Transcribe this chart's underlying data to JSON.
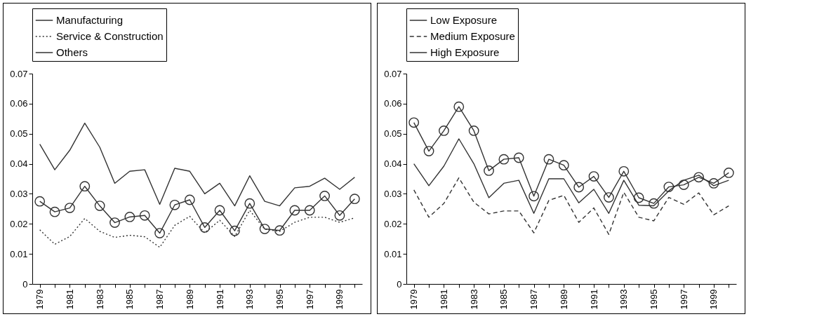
{
  "chart_data": [
    {
      "type": "line",
      "categories": [
        "1979",
        null,
        "1981",
        null,
        "1983",
        null,
        "1985",
        null,
        "1987",
        null,
        "1989",
        null,
        "1991",
        null,
        "1993",
        null,
        "1995",
        null,
        "1997",
        null,
        "1999",
        null
      ],
      "ylim": [
        0,
        0.07
      ],
      "yticks": [
        0,
        0.01,
        0.02,
        0.03,
        0.04,
        0.05,
        0.06,
        0.07
      ],
      "legend": "top",
      "series": [
        {
          "name": "Manufacturing",
          "color": "#333333",
          "line_style": "solid",
          "marker": "none",
          "values": [
            0.0465,
            0.038,
            0.0445,
            0.0535,
            0.0455,
            0.0335,
            0.0375,
            0.038,
            0.0265,
            0.0385,
            0.0375,
            0.03,
            0.0335,
            0.026,
            0.036,
            0.0275,
            0.026,
            0.032,
            0.0325,
            0.0352,
            0.0315,
            0.0355
          ]
        },
        {
          "name": "Service & Construction",
          "color": "#333333",
          "line_style": "dotted",
          "marker": "none",
          "values": [
            0.018,
            0.0132,
            0.0158,
            0.0218,
            0.0175,
            0.0155,
            0.0162,
            0.0157,
            0.0122,
            0.0195,
            0.0225,
            0.017,
            0.0212,
            0.0158,
            0.0245,
            0.0182,
            0.0175,
            0.0205,
            0.0222,
            0.0222,
            0.0205,
            0.022
          ]
        },
        {
          "name": "Others",
          "color": "#333333",
          "line_style": "solid",
          "marker": "circle",
          "values": [
            0.0275,
            0.024,
            0.0253,
            0.0325,
            0.026,
            0.0204,
            0.0223,
            0.0228,
            0.0169,
            0.0263,
            0.028,
            0.0188,
            0.0245,
            0.0177,
            0.0268,
            0.0183,
            0.0178,
            0.0245,
            0.0245,
            0.0293,
            0.0228,
            0.0283
          ]
        }
      ]
    },
    {
      "type": "line",
      "categories": [
        "1979",
        null,
        "1981",
        null,
        "1983",
        null,
        "1985",
        null,
        "1987",
        null,
        "1989",
        null,
        "1991",
        null,
        "1993",
        null,
        "1995",
        null,
        "1997",
        null,
        "1999",
        null
      ],
      "ylim": [
        0,
        0.07
      ],
      "yticks": [
        0,
        0.01,
        0.02,
        0.03,
        0.04,
        0.05,
        0.06,
        0.07
      ],
      "legend": "top",
      "series": [
        {
          "name": "Low Exposure",
          "color": "#333333",
          "line_style": "solid",
          "marker": "none",
          "values": [
            0.04,
            0.0327,
            0.0392,
            0.0483,
            0.04,
            0.0287,
            0.0335,
            0.0345,
            0.0235,
            0.035,
            0.035,
            0.027,
            0.0315,
            0.0235,
            0.0345,
            0.0262,
            0.026,
            0.031,
            0.0345,
            0.0362,
            0.0327,
            0.0345
          ]
        },
        {
          "name": "Medium Exposure",
          "color": "#333333",
          "line_style": "dashed",
          "marker": "none",
          "values": [
            0.0313,
            0.0222,
            0.0268,
            0.0353,
            0.0272,
            0.0233,
            0.0243,
            0.0243,
            0.017,
            0.0278,
            0.0295,
            0.0205,
            0.0253,
            0.0165,
            0.0305,
            0.0222,
            0.021,
            0.0288,
            0.0265,
            0.0303,
            0.023,
            0.026
          ]
        },
        {
          "name": "High Exposure",
          "color": "#333333",
          "line_style": "solid",
          "marker": "circle",
          "values": [
            0.0537,
            0.0442,
            0.051,
            0.059,
            0.051,
            0.0377,
            0.0415,
            0.042,
            0.0292,
            0.0415,
            0.0395,
            0.0322,
            0.0358,
            0.0288,
            0.0375,
            0.0287,
            0.0268,
            0.0323,
            0.033,
            0.0355,
            0.0335,
            0.037
          ]
        }
      ]
    }
  ]
}
